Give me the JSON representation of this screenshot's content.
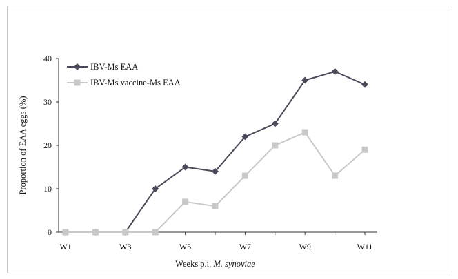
{
  "chart_data": {
    "type": "line",
    "title": "",
    "xlabel": "Weeks p.i.",
    "xlabel_italic": "M. synoviae",
    "ylabel": "Proportion of EAA eggs (%)",
    "ylim": [
      0,
      40
    ],
    "y_ticks": [
      0,
      10,
      20,
      30,
      40
    ],
    "categories": [
      "W1",
      "W2",
      "W3",
      "W4",
      "W5",
      "W6",
      "W7",
      "W8",
      "W9",
      "W10",
      "W11"
    ],
    "x_tick_labels": [
      "W1",
      "",
      "W3",
      "",
      "W5",
      "",
      "W7",
      "",
      "W9",
      "",
      "W11"
    ],
    "legend_position": "top-left",
    "grid": false,
    "series": [
      {
        "name": "IBV-Ms EAA",
        "marker": "diamond",
        "color": "#4a4a5a",
        "values": [
          0,
          0,
          0,
          10,
          15,
          14,
          22,
          25,
          35,
          37,
          34
        ]
      },
      {
        "name": "IBV-Ms vaccine-Ms EAA",
        "marker": "square",
        "color": "#c8c8c8",
        "values": [
          0,
          0,
          0,
          0,
          7,
          6,
          13,
          20,
          23,
          13,
          19
        ]
      }
    ]
  }
}
